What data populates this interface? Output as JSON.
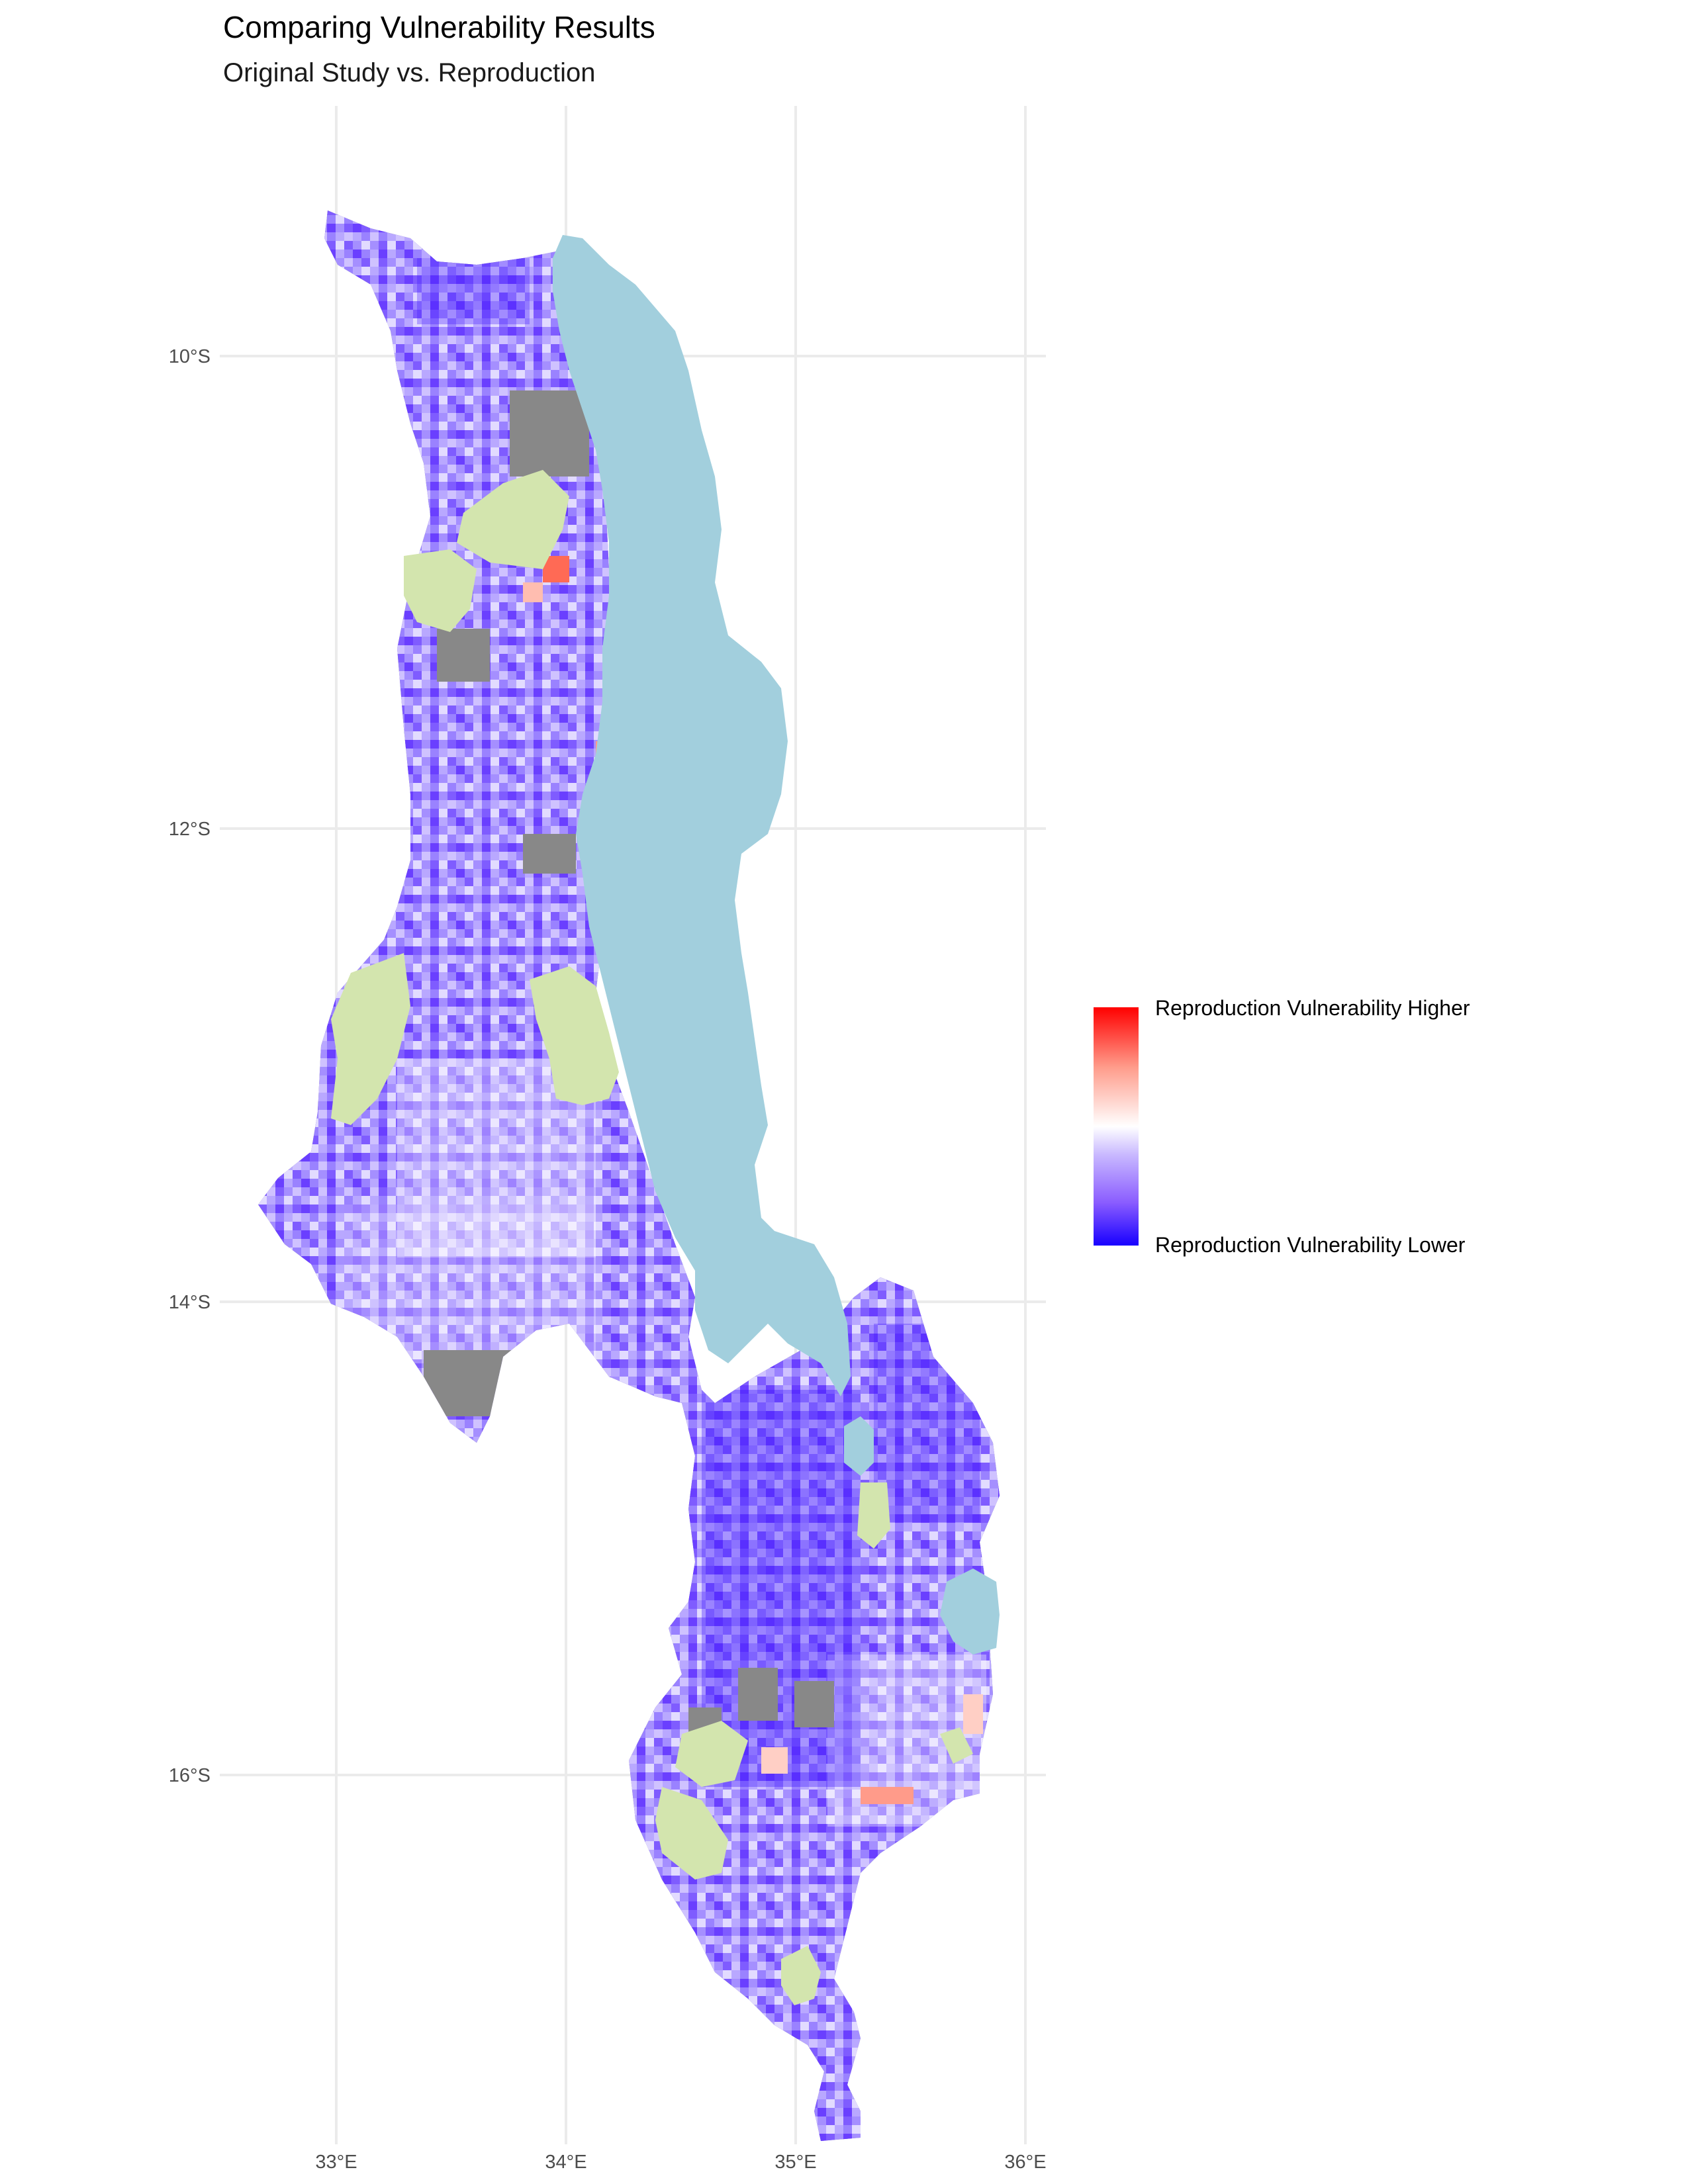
{
  "title": "Comparing Vulnerability Results",
  "subtitle": "Original Study vs. Reproduction",
  "axes": {
    "x_ticks": [
      "33°E",
      "34°E",
      "35°E",
      "36°E"
    ],
    "y_ticks": [
      "10°S",
      "12°S",
      "14°S",
      "16°S"
    ]
  },
  "legend": {
    "high_label": "Reproduction Vulnerability Higher",
    "low_label": "Reproduction Vulnerability Lower"
  },
  "colors": {
    "lake": "#a2cfdd",
    "protected_area": "#d3e5ae",
    "no_data": "#888888",
    "high": "#ff0000",
    "neutral": "#ffffff",
    "low": "#1800ff",
    "typical": "#9a7bff"
  }
}
